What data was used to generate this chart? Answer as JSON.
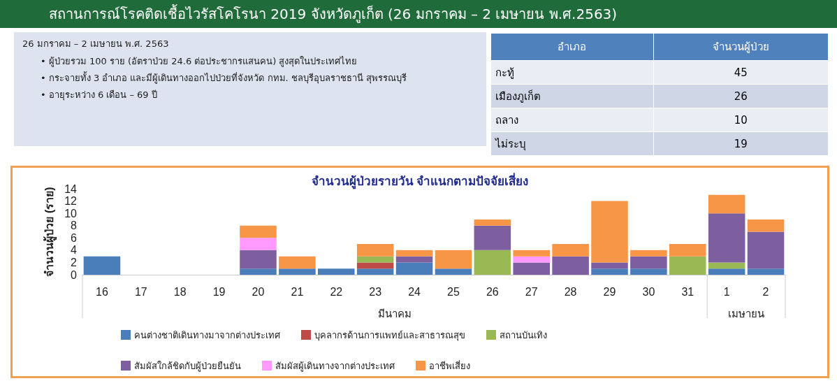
{
  "chart_data": [
    {
      "type": "other",
      "title": "สถานการณ์โรคติดเชื้อไวรัสโคโรนา 2019 จังหวัดภูเก็ต (26 มกราคม – 2 เมษายน พ.ศ.2563)",
      "subtitle": "26 มกราคม – 2 เมษายน พ.ศ. 2563",
      "annotations": [
        "• ผู้ป่วยรวม 100 ราย (อัตราป่วย 24.6 ต่อประชากรแสนคน)  สูงสุดในประเทศไทย",
        "• กระจายทั้ง 3 อำเภอ และมีผู้เดินทางออกไปป่วยที่จังหวัด  กทม. ชลบุรีอุบลราชธานี สุพรรณบุรี",
        "• อายุระหว่าง 6 เดือน – 69 ปี"
      ]
    },
    {
      "type": "other",
      "xlabel": "อำเภอ",
      "ylabel": "จำนวนผู้ป่วย",
      "categories": [
        "กะทู้",
        "เมืองภูเก็ต",
        "ถลาง",
        "ไม่ระบุ"
      ],
      "values": [
        45,
        26,
        10,
        19
      ],
      "data_labels": true
    },
    {
      "type": "bar",
      "title": "จำนวนผู้ป่วยรายวัน จำแนกตามปัจจัยเสี่ยง",
      "ylabel": "จำนวนผู้ป่วย (ราย)",
      "stacked": true,
      "grid": false,
      "legend": "bottom",
      "ylim": [
        0,
        14
      ],
      "yticks": [
        0,
        2,
        4,
        6,
        8,
        10,
        12,
        14
      ],
      "categories": [
        "16",
        "17",
        "18",
        "19",
        "20",
        "21",
        "22",
        "23",
        "24",
        "25",
        "26",
        "27",
        "28",
        "29",
        "30",
        "31",
        "1",
        "2"
      ],
      "annotations": [
        "มีนาคม",
        "เมษายน"
      ],
      "series": [
        {
          "name": "คนต่างชาติเดินทางมาจากต่างประเทศ",
          "color": "#4a7ebb",
          "values": [
            3,
            0,
            0,
            0,
            1,
            1,
            1,
            1,
            2,
            1,
            0,
            0,
            0,
            1,
            1,
            0,
            1,
            1
          ]
        },
        {
          "name": "บุคลากรด้านการแพทย์และสาธารณสุข",
          "color": "#be4b48",
          "values": [
            0,
            0,
            0,
            0,
            0,
            0,
            0,
            1,
            0,
            0,
            0,
            0,
            0,
            0,
            0,
            0,
            0,
            0
          ]
        },
        {
          "name": "สถานบันเทิง",
          "color": "#98b954",
          "values": [
            0,
            0,
            0,
            0,
            0,
            0,
            0,
            1,
            0,
            0,
            4,
            0,
            0,
            0,
            0,
            3,
            1,
            0
          ]
        },
        {
          "name": "สัมผัสใกล้ชิดกับผู้ป่วยยืนยัน",
          "color": "#7d5fa0",
          "values": [
            0,
            0,
            0,
            0,
            3,
            0,
            0,
            0,
            1,
            0,
            4,
            2,
            3,
            1,
            2,
            0,
            8,
            6
          ]
        },
        {
          "name": "สัมผัสผู้เดินทางจากต่างประเทศ",
          "color": "#ff99ff",
          "values": [
            0,
            0,
            0,
            0,
            2,
            0,
            0,
            0,
            0,
            0,
            0,
            1,
            0,
            0,
            0,
            0,
            0,
            0
          ]
        },
        {
          "name": "อาชีพเสี่ยง",
          "color": "#f79646",
          "values": [
            0,
            0,
            0,
            0,
            2,
            2,
            0,
            2,
            1,
            3,
            1,
            1,
            2,
            10,
            1,
            2,
            3,
            2
          ]
        }
      ]
    }
  ]
}
